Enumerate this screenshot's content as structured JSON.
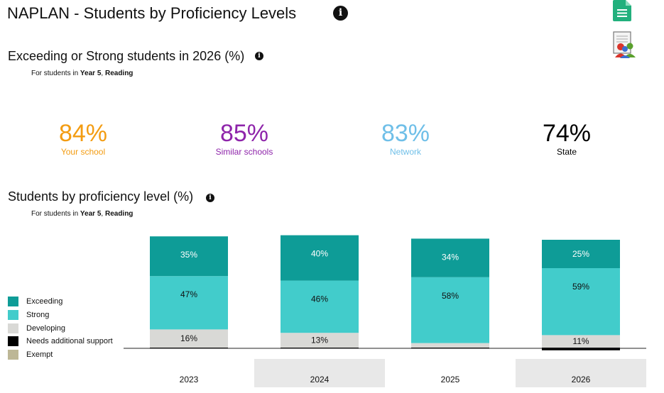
{
  "header": {
    "title": "NAPLAN - Students by Proficiency Levels"
  },
  "icons": {
    "info": "info-icon",
    "document": "document-icon",
    "report": "report-icon"
  },
  "kpi_section": {
    "title": "Exceeding or Strong students in 2026 (%)",
    "subtitle_prefix": "For students in ",
    "subtitle_year": "Year 5",
    "subtitle_sep": ", ",
    "subtitle_domain": "Reading",
    "items": [
      {
        "value": "84%",
        "label": "Your school",
        "color": "#f39c12"
      },
      {
        "value": "85%",
        "label": "Similar schools",
        "color": "#8e24aa"
      },
      {
        "value": "83%",
        "label": "Network",
        "color": "#6fbfe8"
      },
      {
        "value": "74%",
        "label": "State",
        "color": "#000000"
      }
    ]
  },
  "chart_section": {
    "title": "Students by proficiency level (%)",
    "subtitle_prefix": "For students in ",
    "subtitle_year": "Year 5",
    "subtitle_sep": ", ",
    "subtitle_domain": "Reading"
  },
  "legend": [
    {
      "label": "Exceeding",
      "color": "#0e9c97"
    },
    {
      "label": "Strong",
      "color": "#42cccb"
    },
    {
      "label": "Developing",
      "color": "#d9d9d6"
    },
    {
      "label": "Needs additional support",
      "color": "#000000"
    },
    {
      "label": "Exempt",
      "color": "#bdb796"
    }
  ],
  "chart_data": {
    "type": "bar",
    "stacked": true,
    "categories": [
      "2023",
      "2024",
      "2025",
      "2026"
    ],
    "series": [
      {
        "name": "Needs additional support",
        "values": [
          1,
          1,
          1,
          3
        ],
        "labels": [
          "",
          "",
          "",
          ""
        ],
        "color": "#000000"
      },
      {
        "name": "Developing",
        "values": [
          16,
          13,
          4,
          11
        ],
        "labels": [
          "16%",
          "13%",
          "",
          "11%"
        ],
        "color": "#d9d9d6"
      },
      {
        "name": "Strong",
        "values": [
          47,
          46,
          58,
          59
        ],
        "labels": [
          "47%",
          "46%",
          "58%",
          "59%"
        ],
        "color": "#42cccb"
      },
      {
        "name": "Exceeding",
        "values": [
          35,
          40,
          34,
          25
        ],
        "labels": [
          "35%",
          "40%",
          "34%",
          "25%"
        ],
        "color": "#0e9c97"
      }
    ],
    "label_colors": {
      "Needs additional support": "#ffffff",
      "Developing": "#111111",
      "Strong": "#111111",
      "Exceeding": "#ffffff"
    },
    "shaded_categories": [
      "2024",
      "2026"
    ]
  }
}
